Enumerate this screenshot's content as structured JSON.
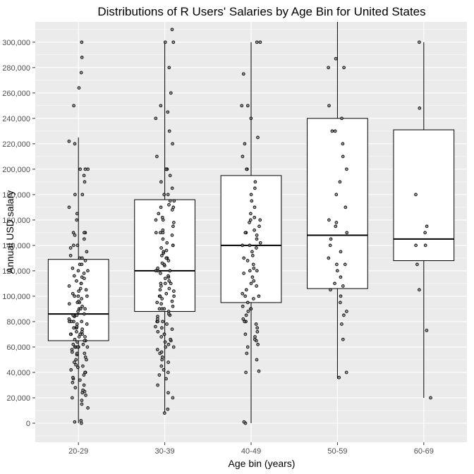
{
  "chart_data": {
    "type": "box",
    "title": "Distributions of R Users' Salaries by Age Bin for United States",
    "xlabel": "Age bin (years)",
    "ylabel": "Annual USD salary",
    "ylim": [
      -15000,
      316000
    ],
    "y_ticks": [
      0,
      20000,
      40000,
      60000,
      80000,
      100000,
      120000,
      140000,
      160000,
      180000,
      200000,
      220000,
      240000,
      260000,
      280000,
      300000
    ],
    "y_tick_labels": [
      "0",
      "20,000",
      "40,000",
      "60,000",
      "80,000",
      "100,000",
      "120,000",
      "140,000",
      "160,000",
      "180,000",
      "200,000",
      "220,000",
      "240,000",
      "260,000",
      "280,000",
      "300,000"
    ],
    "categories": [
      "20-29",
      "30-39",
      "40-49",
      "50-59",
      "60-69"
    ],
    "grid": true,
    "legend": "none",
    "colors": {
      "panel": "#ebebeb",
      "grid": "#ffffff",
      "box_fill": "#ffffff",
      "box_stroke": "#000000",
      "point": "#000000"
    },
    "boxes": [
      {
        "category": "20-29",
        "whisker_low": 0,
        "q1": 65000,
        "median": 86000,
        "q3": 129000,
        "whisker_high": 225000
      },
      {
        "category": "30-39",
        "whisker_low": 8000,
        "q1": 88000,
        "median": 120000,
        "q3": 176000,
        "whisker_high": 300000
      },
      {
        "category": "40-49",
        "whisker_low": 0,
        "q1": 95000,
        "median": 140000,
        "q3": 195000,
        "whisker_high": 300000
      },
      {
        "category": "50-59",
        "whisker_low": 35000,
        "q1": 106000,
        "median": 148000,
        "q3": 240000,
        "whisker_high": 316000
      },
      {
        "category": "60-69",
        "whisker_low": 20000,
        "q1": 128000,
        "median": 145000,
        "q3": 231000,
        "whisker_high": 300000
      }
    ],
    "points": {
      "20-29": [
        0,
        1000,
        2000,
        12000,
        15000,
        18000,
        20000,
        22000,
        24000,
        25000,
        26000,
        28000,
        30000,
        32000,
        34000,
        35000,
        36000,
        38000,
        40000,
        40000,
        42000,
        44000,
        45000,
        46000,
        48000,
        50000,
        50000,
        52000,
        54000,
        55000,
        55000,
        56000,
        58000,
        60000,
        60000,
        60000,
        60000,
        60000,
        62000,
        62000,
        64000,
        65000,
        65000,
        66000,
        68000,
        68000,
        70000,
        70000,
        70000,
        70000,
        72000,
        72000,
        74000,
        75000,
        75000,
        75000,
        76000,
        78000,
        78000,
        80000,
        80000,
        80000,
        80000,
        82000,
        84000,
        85000,
        85000,
        85000,
        86000,
        88000,
        90000,
        90000,
        90000,
        92000,
        94000,
        95000,
        95000,
        96000,
        98000,
        100000,
        100000,
        100000,
        102000,
        104000,
        105000,
        106000,
        108000,
        110000,
        110000,
        112000,
        114000,
        115000,
        116000,
        118000,
        120000,
        120000,
        122000,
        125000,
        125000,
        128000,
        130000,
        130000,
        132000,
        135000,
        138000,
        140000,
        140000,
        145000,
        148000,
        150000,
        150000,
        150000,
        160000,
        165000,
        170000,
        180000,
        180000,
        190000,
        195000,
        200000,
        200000,
        200000,
        220000,
        222000,
        250000,
        264000,
        276000,
        288000,
        300000
      ],
      "30-39": [
        8000,
        11000,
        20000,
        24000,
        30000,
        35000,
        38000,
        40000,
        42000,
        45000,
        48000,
        50000,
        52000,
        55000,
        56000,
        58000,
        60000,
        60000,
        62000,
        64000,
        65000,
        66000,
        68000,
        70000,
        70000,
        72000,
        74000,
        75000,
        76000,
        78000,
        80000,
        80000,
        80000,
        82000,
        84000,
        85000,
        86000,
        88000,
        90000,
        90000,
        90000,
        92000,
        94000,
        95000,
        96000,
        98000,
        100000,
        100000,
        100000,
        102000,
        104000,
        105000,
        106000,
        108000,
        110000,
        110000,
        110000,
        112000,
        114000,
        115000,
        116000,
        118000,
        120000,
        120000,
        120000,
        122000,
        124000,
        125000,
        126000,
        128000,
        130000,
        130000,
        132000,
        134000,
        135000,
        136000,
        138000,
        140000,
        140000,
        142000,
        145000,
        148000,
        150000,
        150000,
        150000,
        152000,
        155000,
        158000,
        160000,
        160000,
        162000,
        165000,
        168000,
        170000,
        170000,
        172000,
        175000,
        175000,
        180000,
        180000,
        185000,
        190000,
        195000,
        200000,
        200000,
        200000,
        210000,
        220000,
        230000,
        240000,
        245000,
        250000,
        260000,
        280000,
        300000,
        300000,
        310000
      ],
      "40-49": [
        0,
        1000,
        40000,
        41000,
        50000,
        55000,
        60000,
        62000,
        65000,
        66000,
        68000,
        70000,
        72000,
        75000,
        78000,
        80000,
        80000,
        82000,
        85000,
        88000,
        90000,
        90000,
        92000,
        95000,
        98000,
        100000,
        100000,
        102000,
        105000,
        108000,
        110000,
        112000,
        115000,
        118000,
        120000,
        120000,
        122000,
        125000,
        128000,
        130000,
        132000,
        135000,
        138000,
        140000,
        140000,
        142000,
        145000,
        148000,
        150000,
        150000,
        152000,
        155000,
        158000,
        160000,
        160000,
        162000,
        165000,
        170000,
        175000,
        180000,
        185000,
        190000,
        200000,
        200000,
        210000,
        220000,
        225000,
        240000,
        250000,
        250000,
        275000,
        300000,
        300000
      ],
      "50-59": [
        36000,
        40000,
        66000,
        78000,
        85000,
        88000,
        95000,
        100000,
        105000,
        108000,
        110000,
        115000,
        120000,
        125000,
        125000,
        130000,
        135000,
        140000,
        145000,
        150000,
        155000,
        158000,
        160000,
        170000,
        180000,
        190000,
        200000,
        210000,
        220000,
        230000,
        230000,
        240000,
        250000,
        280000,
        280000,
        287000
      ],
      "60-69": [
        20000,
        73000,
        105000,
        125000,
        140000,
        140000,
        150000,
        155000,
        180000,
        248000,
        300000
      ]
    }
  }
}
